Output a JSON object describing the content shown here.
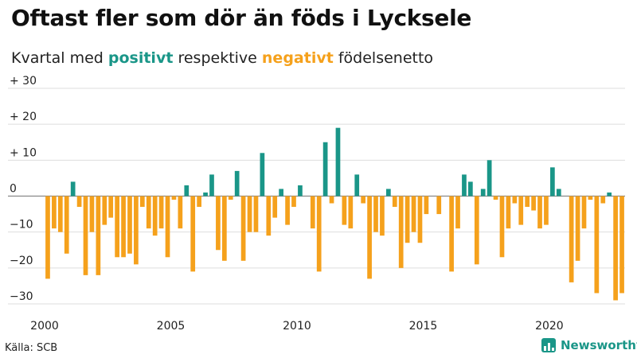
{
  "header": {
    "title": "Oftast fler som dör än föds i Lycksele",
    "subtitle_pre": "Kvartal med ",
    "subtitle_positive": "positivt",
    "subtitle_mid": " respektive ",
    "subtitle_negative": "negativt",
    "subtitle_post": " födelsenetto"
  },
  "footer": {
    "source": "Källa: SCB",
    "brand": "Newsworthy"
  },
  "colors": {
    "positive": "#1a9688",
    "negative": "#f5a11c"
  },
  "chart_data": {
    "type": "bar",
    "title": "Oftast fler som dör än föds i Lycksele",
    "subtitle": "Kvartal med positivt respektive negativt födelsenetto",
    "x_start": "2000",
    "x_ticks": [
      "2000",
      "2005",
      "2010",
      "2015",
      "2020"
    ],
    "y_ticks": [
      {
        "value": 30,
        "label": "+ 30"
      },
      {
        "value": 20,
        "label": "+ 20"
      },
      {
        "value": 10,
        "label": "+ 10"
      },
      {
        "value": 0,
        "label": "0"
      },
      {
        "value": -10,
        "label": "−10"
      },
      {
        "value": -20,
        "label": "−20"
      },
      {
        "value": -30,
        "label": "−30"
      }
    ],
    "ylim": [
      -30,
      30
    ],
    "grid": true,
    "values": [
      -23,
      -9,
      -10,
      -16,
      4,
      -3,
      -22,
      -10,
      -22,
      -8,
      -6,
      -17,
      -17,
      -16,
      -19,
      -3,
      -9,
      -11,
      -9,
      -17,
      -1,
      -9,
      3,
      -21,
      -3,
      1,
      6,
      -15,
      -18,
      -1,
      7,
      -18,
      -10,
      -10,
      12,
      -11,
      -6,
      2,
      -8,
      -3,
      3,
      0,
      -9,
      -21,
      15,
      -2,
      19,
      -8,
      -9,
      6,
      -2,
      -23,
      -10,
      -11,
      2,
      -3,
      -20,
      -13,
      -10,
      -13,
      -5,
      0,
      -5,
      0,
      -21,
      -9,
      6,
      4,
      -19,
      2,
      10,
      -1,
      -17,
      -9,
      -2,
      -8,
      -3,
      -4,
      -9,
      -8,
      8,
      2,
      0,
      -24,
      -18,
      -9,
      -1,
      -27,
      -2,
      1,
      -29,
      -27
    ]
  }
}
